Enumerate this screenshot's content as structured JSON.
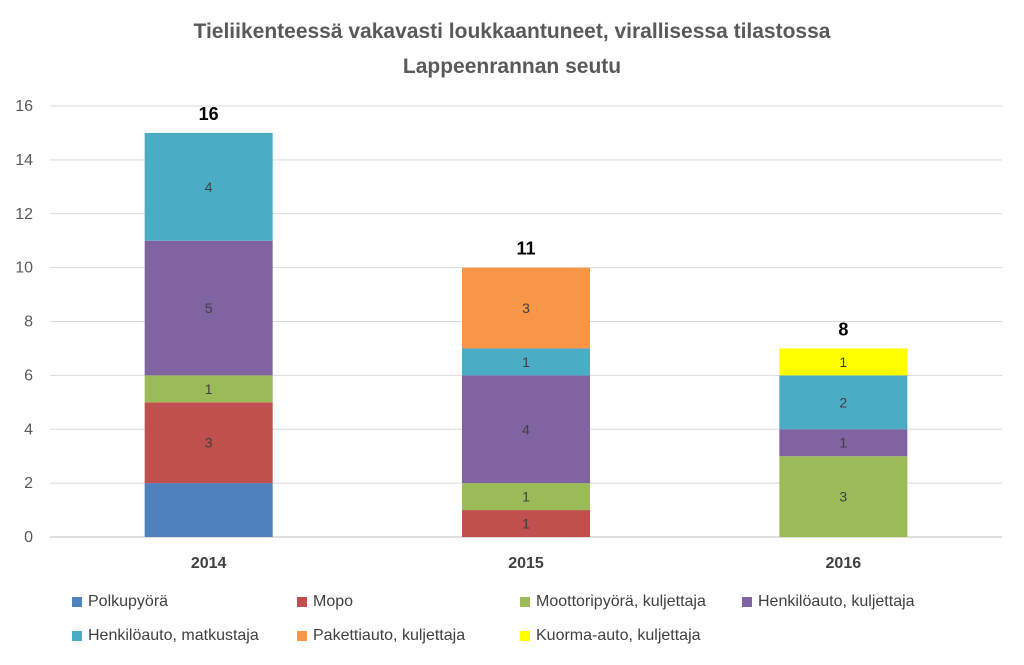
{
  "chart_data": {
    "type": "bar",
    "stacked": true,
    "title": "Tieliikenteessä vakavasti loukkaantuneet, virallisessa tilastossa",
    "subtitle": "Lappeenrannan seutu",
    "categories": [
      "2014",
      "2015",
      "2016"
    ],
    "ylim": [
      0,
      16
    ],
    "yticks": [
      0,
      2,
      4,
      6,
      8,
      10,
      12,
      14,
      16
    ],
    "grid": true,
    "legend_position": "bottom",
    "totals": [
      16,
      11,
      8
    ],
    "series": [
      {
        "name": "Polkupyörä",
        "color": "#4f81bd",
        "values": [
          2,
          0,
          0
        ],
        "labels": [
          "",
          "",
          ""
        ]
      },
      {
        "name": "Mopo",
        "color": "#c0504d",
        "values": [
          3,
          1,
          0
        ],
        "labels": [
          "3",
          "1",
          ""
        ]
      },
      {
        "name": "Moottoripyörä, kuljettaja",
        "color": "#9bbb59",
        "values": [
          1,
          1,
          3
        ],
        "labels": [
          "1",
          "1",
          "3"
        ]
      },
      {
        "name": "Henkilöauto, kuljettaja",
        "color": "#8064a2",
        "values": [
          5,
          4,
          1
        ],
        "labels": [
          "5",
          "4",
          "1"
        ]
      },
      {
        "name": "Henkilöauto, matkustaja",
        "color": "#4bacc6",
        "values": [
          4,
          1,
          2
        ],
        "labels": [
          "4",
          "1",
          "2"
        ]
      },
      {
        "name": "Pakettiauto, kuljettaja",
        "color": "#f79646",
        "values": [
          0,
          3,
          0
        ],
        "labels": [
          "",
          "3",
          ""
        ]
      },
      {
        "name": "Kuorma-auto, kuljettaja",
        "color": "#ffff00",
        "values": [
          0,
          0,
          1
        ],
        "labels": [
          "",
          "",
          "1"
        ]
      }
    ]
  }
}
